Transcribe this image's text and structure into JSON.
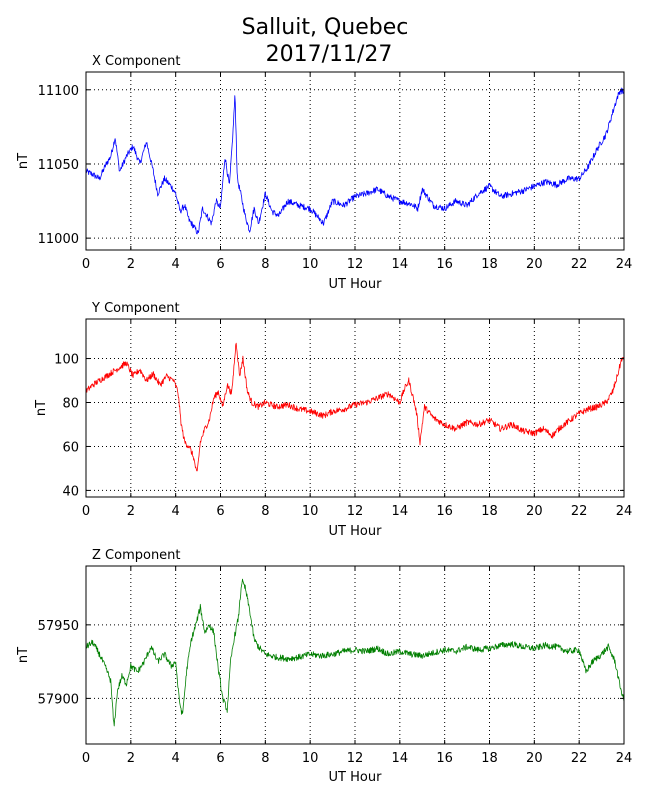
{
  "figure": {
    "title_line1": "Salluit, Quebec",
    "title_line2": "2017/11/27"
  },
  "chart_data": [
    {
      "type": "line",
      "title": "X Component",
      "xlabel": "UT Hour",
      "ylabel": "nT",
      "color": "#0000ff",
      "xlim": [
        0,
        24
      ],
      "ylim": [
        10992,
        11112
      ],
      "xticks": [
        0,
        2,
        4,
        6,
        8,
        10,
        12,
        14,
        16,
        18,
        20,
        22,
        24
      ],
      "yticks": [
        11000,
        11050,
        11100
      ],
      "grid": true,
      "series": [
        {
          "x": [
            0,
            0.3,
            0.6,
            0.9,
            1.1,
            1.3,
            1.5,
            1.8,
            2.1,
            2.4,
            2.7,
            3.0,
            3.2,
            3.5,
            3.8,
            4.0,
            4.2,
            4.4,
            4.6,
            4.8,
            5.0,
            5.2,
            5.4,
            5.6,
            5.8,
            6.0,
            6.2,
            6.4,
            6.55,
            6.65,
            6.75,
            6.9,
            7.1,
            7.3,
            7.5,
            7.7,
            8.0,
            8.3,
            8.6,
            9.0,
            9.5,
            10.0,
            10.3,
            10.6,
            11.0,
            11.5,
            12.0,
            12.5,
            13.0,
            13.5,
            14.0,
            14.5,
            14.8,
            15.0,
            15.5,
            16.0,
            16.5,
            17.0,
            17.5,
            18.0,
            18.5,
            19.0,
            19.5,
            20.0,
            20.5,
            21.0,
            21.5,
            22.0,
            22.4,
            22.8,
            23.2,
            23.5,
            23.7,
            23.85,
            24.0
          ],
          "values": [
            11045,
            11043,
            11040,
            11050,
            11055,
            11068,
            11045,
            11055,
            11062,
            11050,
            11065,
            11045,
            11030,
            11040,
            11035,
            11030,
            11018,
            11022,
            11012,
            11008,
            11003,
            11020,
            11015,
            11010,
            11025,
            11020,
            11055,
            11035,
            11070,
            11097,
            11040,
            11030,
            11015,
            11005,
            11020,
            11010,
            11030,
            11018,
            11015,
            11025,
            11022,
            11020,
            11015,
            11010,
            11025,
            11022,
            11028,
            11030,
            11033,
            11028,
            11025,
            11023,
            11020,
            11033,
            11022,
            11020,
            11025,
            11022,
            11030,
            11035,
            11028,
            11030,
            11032,
            11035,
            11038,
            11036,
            11040,
            11040,
            11048,
            11060,
            11070,
            11085,
            11095,
            11100,
            11098
          ]
        }
      ]
    },
    {
      "type": "line",
      "title": "Y Component",
      "xlabel": "UT Hour",
      "ylabel": "nT",
      "color": "#ff0000",
      "xlim": [
        0,
        24
      ],
      "ylim": [
        37,
        118
      ],
      "xticks": [
        0,
        2,
        4,
        6,
        8,
        10,
        12,
        14,
        16,
        18,
        20,
        22,
        24
      ],
      "yticks": [
        40,
        60,
        80,
        100
      ],
      "grid": true,
      "series": [
        {
          "x": [
            0,
            0.3,
            0.6,
            0.9,
            1.2,
            1.5,
            1.8,
            2.1,
            2.4,
            2.7,
            3.0,
            3.3,
            3.6,
            3.9,
            4.1,
            4.25,
            4.4,
            4.6,
            4.8,
            4.95,
            5.1,
            5.3,
            5.5,
            5.7,
            5.9,
            6.1,
            6.3,
            6.5,
            6.7,
            6.85,
            7.0,
            7.2,
            7.4,
            7.7,
            8.0,
            8.5,
            9.0,
            9.5,
            10.0,
            10.3,
            10.6,
            11.0,
            11.5,
            12.0,
            12.5,
            13.0,
            13.5,
            14.0,
            14.2,
            14.4,
            14.6,
            14.75,
            14.9,
            15.1,
            15.5,
            16.0,
            16.5,
            17.0,
            17.5,
            18.0,
            18.5,
            19.0,
            19.5,
            20.0,
            20.4,
            20.8,
            21.2,
            21.6,
            22.0,
            22.4,
            22.8,
            23.2,
            23.5,
            23.7,
            23.9,
            24.0
          ],
          "values": [
            85,
            88,
            90,
            92,
            94,
            96,
            98,
            92,
            95,
            90,
            93,
            88,
            92,
            90,
            85,
            70,
            62,
            60,
            55,
            47,
            62,
            68,
            72,
            82,
            85,
            78,
            88,
            84,
            108,
            92,
            100,
            85,
            80,
            78,
            80,
            78,
            79,
            77,
            76,
            75,
            74,
            76,
            77,
            79,
            80,
            82,
            84,
            80,
            86,
            90,
            82,
            75,
            62,
            78,
            73,
            70,
            68,
            71,
            70,
            72,
            68,
            70,
            67,
            66,
            68,
            65,
            69,
            72,
            75,
            77,
            78,
            80,
            85,
            92,
            100,
            99
          ]
        }
      ]
    },
    {
      "type": "line",
      "title": "Z Component",
      "xlabel": "UT Hour",
      "ylabel": "nT",
      "color": "#007f00",
      "xlim": [
        0,
        24
      ],
      "ylim": [
        57869,
        57990
      ],
      "xticks": [
        0,
        2,
        4,
        6,
        8,
        10,
        12,
        14,
        16,
        18,
        20,
        22,
        24
      ],
      "yticks": [
        57900,
        57950
      ],
      "grid": true,
      "series": [
        {
          "x": [
            0,
            0.3,
            0.6,
            0.9,
            1.1,
            1.25,
            1.4,
            1.6,
            1.8,
            2.0,
            2.3,
            2.6,
            2.9,
            3.2,
            3.5,
            3.8,
            4.0,
            4.15,
            4.3,
            4.5,
            4.7,
            4.9,
            5.1,
            5.3,
            5.5,
            5.7,
            5.9,
            6.1,
            6.3,
            6.45,
            6.6,
            6.8,
            6.95,
            7.1,
            7.3,
            7.5,
            7.7,
            8.0,
            8.5,
            9.0,
            9.5,
            10.0,
            10.5,
            11.0,
            11.5,
            12.0,
            12.5,
            13.0,
            13.5,
            14.0,
            14.5,
            15.0,
            15.5,
            16.0,
            16.5,
            17.0,
            17.5,
            18.0,
            18.5,
            19.0,
            19.5,
            20.0,
            20.5,
            21.0,
            21.5,
            22.0,
            22.3,
            22.6,
            23.0,
            23.3,
            23.6,
            23.8,
            24.0
          ],
          "values": [
            57935,
            57938,
            57930,
            57920,
            57912,
            57880,
            57905,
            57915,
            57910,
            57922,
            57918,
            57925,
            57935,
            57925,
            57930,
            57922,
            57925,
            57900,
            57888,
            57920,
            57940,
            57950,
            57962,
            57945,
            57950,
            57945,
            57920,
            57900,
            57892,
            57925,
            57940,
            57955,
            57980,
            57975,
            57960,
            57940,
            57935,
            57930,
            57928,
            57927,
            57928,
            57930,
            57929,
            57930,
            57932,
            57933,
            57932,
            57934,
            57930,
            57932,
            57930,
            57929,
            57931,
            57933,
            57932,
            57935,
            57933,
            57934,
            57936,
            57937,
            57935,
            57934,
            57936,
            57935,
            57932,
            57933,
            57918,
            57925,
            57930,
            57935,
            57925,
            57910,
            57898
          ]
        }
      ]
    }
  ]
}
